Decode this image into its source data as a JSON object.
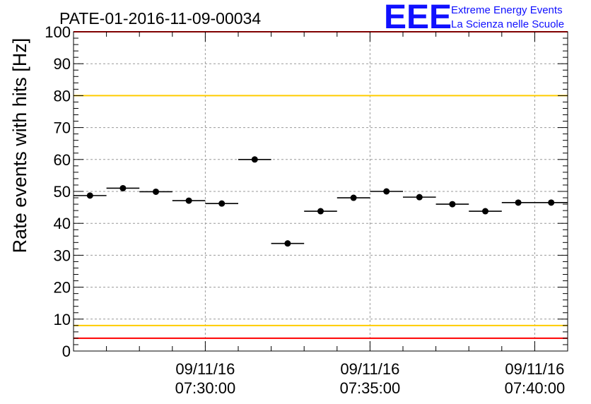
{
  "chart_data": {
    "type": "scatter",
    "title": "PATE-01-2016-11-09-00034",
    "ylabel": "Rate events with hits [Hz]",
    "xlabel": "",
    "ylim": [
      0,
      100
    ],
    "yticks": [
      "0",
      "10",
      "20",
      "30",
      "40",
      "50",
      "60",
      "70",
      "80",
      "90",
      "100"
    ],
    "xtick_labels": [
      {
        "date": "09/11/16",
        "time": "07:30:00"
      },
      {
        "date": "09/11/16",
        "time": "07:35:00"
      },
      {
        "date": "09/11/16",
        "time": "07:40:00"
      }
    ],
    "xrange": [
      "07:26:00",
      "07:41:00"
    ],
    "x": [
      "07:26:30",
      "07:27:30",
      "07:28:30",
      "07:29:30",
      "07:30:30",
      "07:31:30",
      "07:32:30",
      "07:33:30",
      "07:34:30",
      "07:35:30",
      "07:36:30",
      "07:37:30",
      "07:38:30",
      "07:39:30",
      "07:40:30"
    ],
    "bin_width_minutes": 1,
    "values": [
      48.7,
      51.0,
      49.9,
      47.1,
      46.2,
      60.0,
      33.7,
      43.8,
      48.0,
      50.0,
      48.2,
      46.0,
      43.8,
      46.5,
      46.5
    ],
    "reference_lines": [
      {
        "y": 100,
        "color": "#ff0000"
      },
      {
        "y": 80,
        "color": "#ffcc00"
      },
      {
        "y": 8,
        "color": "#ffcc00"
      },
      {
        "y": 4,
        "color": "#ff0000"
      }
    ],
    "grid": true,
    "colors": {
      "marker": "#000000",
      "grid": "#999999",
      "logo": "#1010ff"
    }
  },
  "logo": {
    "mark": "EEE",
    "line1": "Extreme Energy Events",
    "line2": "La Scienza nelle Scuole"
  }
}
